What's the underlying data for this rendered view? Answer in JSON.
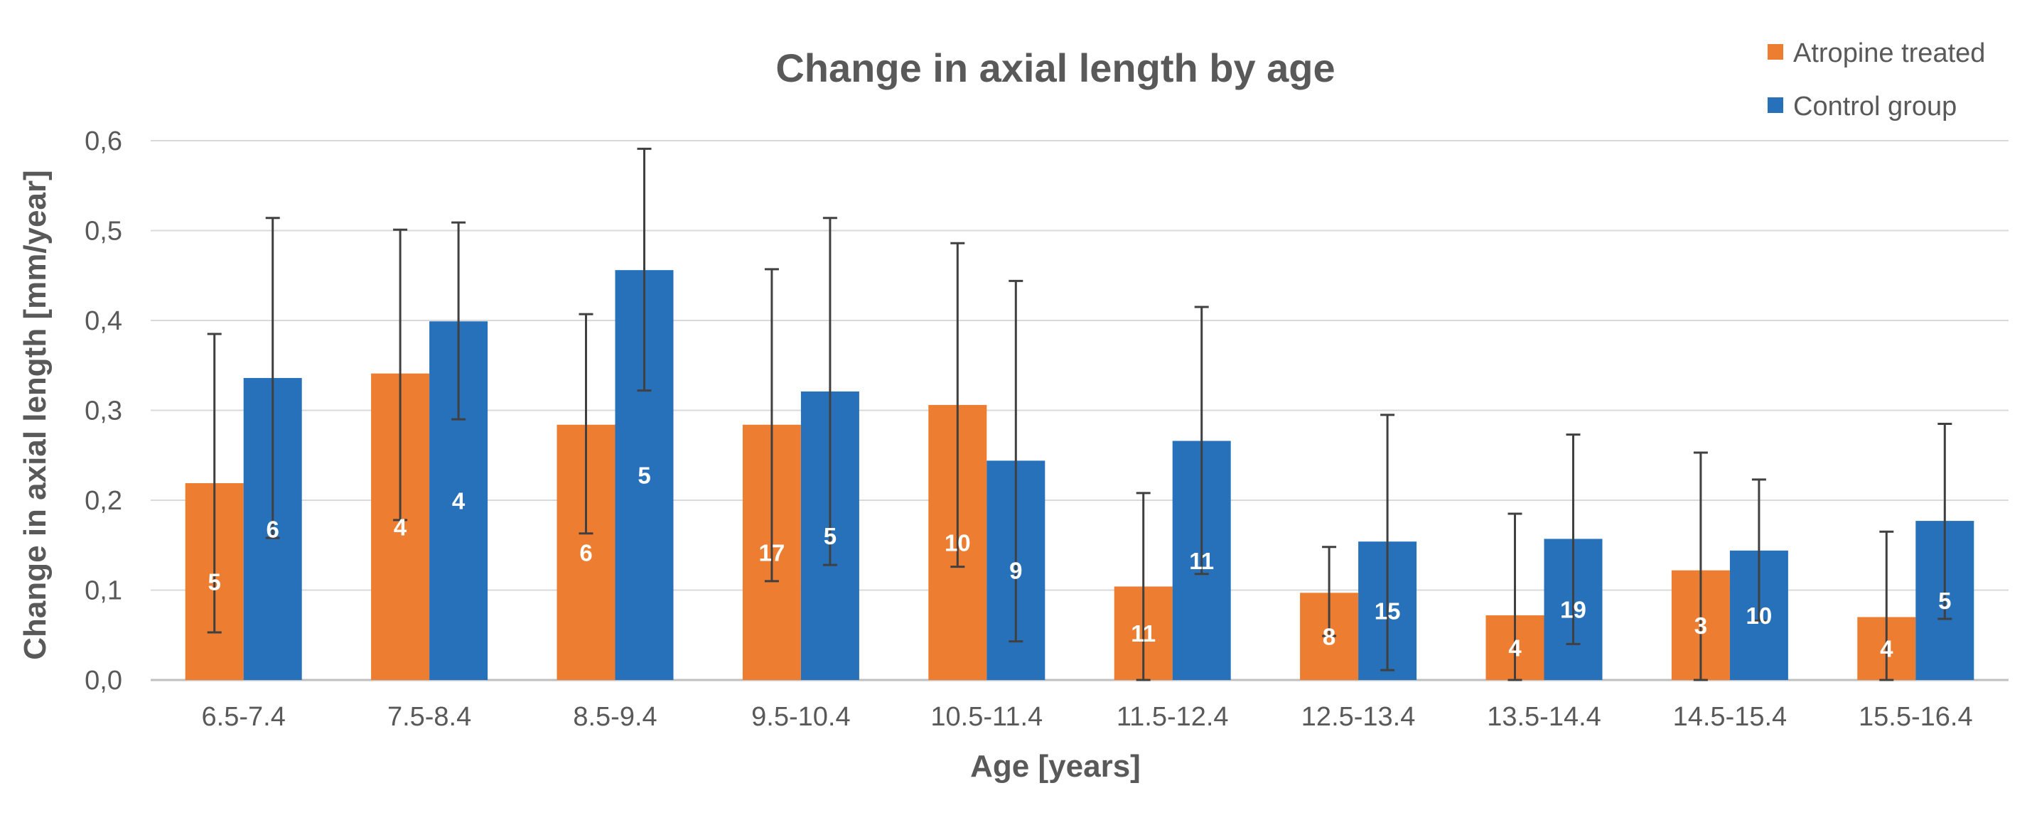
{
  "chart_data": {
    "type": "bar",
    "title": "Change in axial length by age",
    "xlabel": "Age [years]",
    "ylabel": "Change in axial length [mm/year]",
    "ylim": [
      0,
      0.6
    ],
    "yticks": [
      "0,0",
      "0,1",
      "0,2",
      "0,3",
      "0,4",
      "0,5",
      "0,6"
    ],
    "grid": true,
    "legend_position": "top-right",
    "categories": [
      "6.5-7.4",
      "7.5-8.4",
      "8.5-9.4",
      "9.5-10.4",
      "10.5-11.4",
      "11.5-12.4",
      "12.5-13.4",
      "13.5-14.4",
      "14.5-15.4",
      "15.5-16.4"
    ],
    "series": [
      {
        "name": "Atropine treated",
        "color": "#ED7D31",
        "values": [
          0.219,
          0.341,
          0.284,
          0.284,
          0.306,
          0.104,
          0.097,
          0.072,
          0.122,
          0.07
        ],
        "error_low": [
          0.053,
          0.178,
          0.163,
          0.11,
          0.126,
          0.0,
          0.049,
          0.0,
          0.0,
          0.0
        ],
        "error_high": [
          0.385,
          0.501,
          0.407,
          0.457,
          0.486,
          0.208,
          0.148,
          0.185,
          0.253,
          0.165
        ],
        "labels": [
          "5",
          "4",
          "6",
          "17",
          "10",
          "11",
          "8",
          "4",
          "3",
          "4"
        ]
      },
      {
        "name": "Control group",
        "color": "#2770BA",
        "values": [
          0.336,
          0.399,
          0.456,
          0.321,
          0.244,
          0.266,
          0.154,
          0.157,
          0.144,
          0.177
        ],
        "error_low": [
          0.158,
          0.29,
          0.322,
          0.128,
          0.043,
          0.118,
          0.011,
          0.04,
          0.066,
          0.068
        ],
        "error_high": [
          0.514,
          0.509,
          0.591,
          0.514,
          0.444,
          0.415,
          0.295,
          0.273,
          0.223,
          0.285
        ],
        "labels": [
          "6",
          "4",
          "5",
          "5",
          "9",
          "11",
          "15",
          "19",
          "10",
          "5"
        ]
      }
    ]
  }
}
